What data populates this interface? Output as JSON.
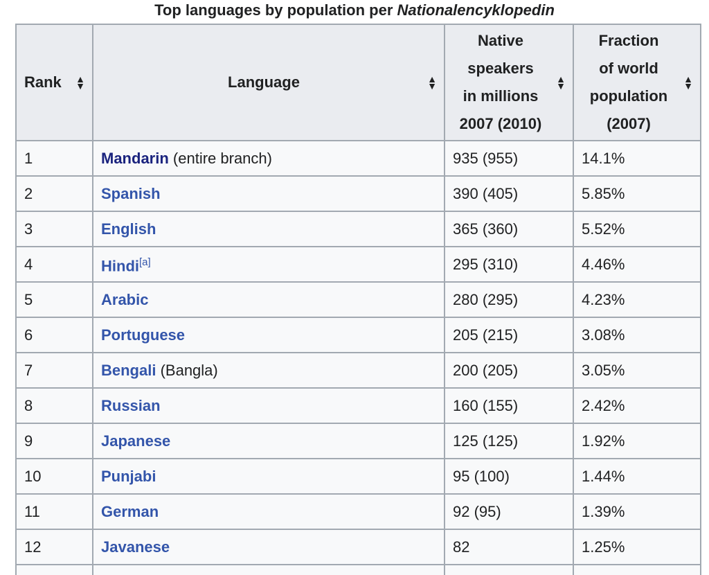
{
  "caption": {
    "prefix": "Top languages by population per ",
    "source": "Nationalencyklopedin"
  },
  "headers": {
    "rank": "Rank",
    "language": "Language",
    "native_lines": [
      "Native",
      "speakers",
      "in millions",
      "2007 (2010)"
    ],
    "fraction_lines": [
      "Fraction",
      "of world",
      "population",
      "(2007)"
    ],
    "sort_icon": "sort-up-down-icon"
  },
  "rows": [
    {
      "rank": "1",
      "language": "Mandarin",
      "extra": " (entire branch)",
      "note": "",
      "native": "935 (955)",
      "fraction": "14.1%"
    },
    {
      "rank": "2",
      "language": "Spanish",
      "extra": "",
      "note": "",
      "native": "390 (405)",
      "fraction": "5.85%"
    },
    {
      "rank": "3",
      "language": "English",
      "extra": "",
      "note": "",
      "native": "365 (360)",
      "fraction": "5.52%"
    },
    {
      "rank": "4",
      "language": "Hindi",
      "extra": "",
      "note": "[a]",
      "native": "295 (310)",
      "fraction": "4.46%"
    },
    {
      "rank": "5",
      "language": "Arabic",
      "extra": "",
      "note": "",
      "native": "280 (295)",
      "fraction": "4.23%"
    },
    {
      "rank": "6",
      "language": "Portuguese",
      "extra": "",
      "note": "",
      "native": "205 (215)",
      "fraction": "3.08%"
    },
    {
      "rank": "7",
      "language": "Bengali",
      "extra": " (Bangla)",
      "note": "",
      "native": "200 (205)",
      "fraction": "3.05%"
    },
    {
      "rank": "8",
      "language": "Russian",
      "extra": "",
      "note": "",
      "native": "160 (155)",
      "fraction": "2.42%"
    },
    {
      "rank": "9",
      "language": "Japanese",
      "extra": "",
      "note": "",
      "native": "125 (125)",
      "fraction": "1.92%"
    },
    {
      "rank": "10",
      "language": "Punjabi",
      "extra": "",
      "note": "",
      "native": "95 (100)",
      "fraction": "1.44%"
    },
    {
      "rank": "11",
      "language": "German",
      "extra": "",
      "note": "",
      "native": "92 (95)",
      "fraction": "1.39%"
    },
    {
      "rank": "12",
      "language": "Javanese",
      "extra": "",
      "note": "",
      "native": "82",
      "fraction": "1.25%"
    }
  ],
  "colors": {
    "link": "#3355aa",
    "visited_link": "#1a237e",
    "header_bg": "#eaecf0",
    "cell_bg": "#f8f9fa",
    "border": "#a2a9b1"
  }
}
